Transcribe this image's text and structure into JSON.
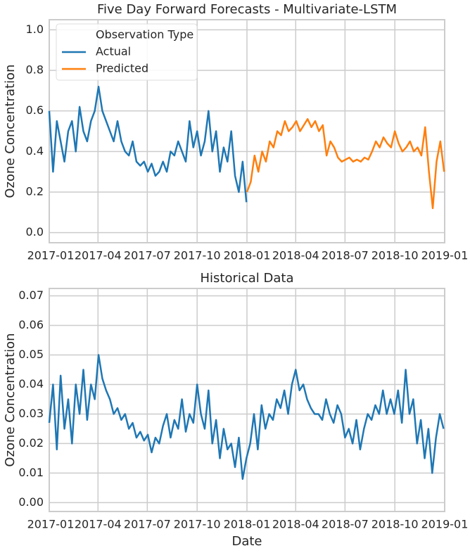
{
  "chart_data": [
    {
      "type": "line",
      "title": "Five Day Forward Forecasts - Multivariate-LSTM",
      "ylabel": "Ozone Concentration",
      "xlim": [
        0,
        730
      ],
      "xticks": [
        {
          "value": 0,
          "label": "2017-01"
        },
        {
          "value": 90,
          "label": "2017-04"
        },
        {
          "value": 181,
          "label": "2017-07"
        },
        {
          "value": 273,
          "label": "2017-10"
        },
        {
          "value": 365,
          "label": "2018-01"
        },
        {
          "value": 455,
          "label": "2018-04"
        },
        {
          "value": 546,
          "label": "2018-07"
        },
        {
          "value": 638,
          "label": "2018-10"
        },
        {
          "value": 730,
          "label": "2019-01"
        }
      ],
      "ylim": [
        -0.05,
        1.05
      ],
      "yticks": [
        {
          "value": 0,
          "label": "0.0"
        },
        0.2,
        0.4,
        0.6,
        0.8,
        {
          "value": 1,
          "label": "1.0"
        }
      ],
      "grid": true,
      "legend": {
        "title": "Observation Type",
        "loc": "upper left"
      },
      "series": [
        {
          "name": "Actual",
          "color": "#1f77b4",
          "x": [
            0,
            7,
            14,
            21,
            28,
            35,
            42,
            49,
            56,
            63,
            70,
            77,
            84,
            91,
            98,
            105,
            112,
            119,
            126,
            133,
            140,
            147,
            154,
            161,
            168,
            175,
            182,
            189,
            196,
            203,
            210,
            217,
            224,
            231,
            238,
            245,
            252,
            259,
            266,
            273,
            280,
            287,
            294,
            301,
            308,
            315,
            322,
            329,
            336,
            343,
            350,
            357,
            364
          ],
          "values": [
            0.6,
            0.3,
            0.55,
            0.45,
            0.35,
            0.5,
            0.55,
            0.4,
            0.62,
            0.5,
            0.45,
            0.55,
            0.6,
            0.72,
            0.6,
            0.55,
            0.5,
            0.45,
            0.55,
            0.45,
            0.4,
            0.38,
            0.45,
            0.35,
            0.33,
            0.35,
            0.3,
            0.34,
            0.28,
            0.3,
            0.35,
            0.3,
            0.4,
            0.38,
            0.45,
            0.4,
            0.35,
            0.55,
            0.42,
            0.5,
            0.38,
            0.45,
            0.6,
            0.4,
            0.5,
            0.3,
            0.42,
            0.35,
            0.5,
            0.28,
            0.2,
            0.35,
            0.15
          ]
        },
        {
          "name": "Predicted",
          "color": "#ff7f0e",
          "x": [
            365,
            372,
            379,
            386,
            393,
            400,
            407,
            414,
            421,
            428,
            435,
            442,
            449,
            456,
            463,
            470,
            477,
            484,
            491,
            498,
            505,
            512,
            519,
            526,
            533,
            540,
            547,
            554,
            561,
            568,
            575,
            582,
            589,
            596,
            603,
            610,
            617,
            624,
            631,
            638,
            645,
            652,
            659,
            666,
            673,
            680,
            687,
            694,
            701,
            708,
            715,
            722,
            729
          ],
          "values": [
            0.2,
            0.25,
            0.38,
            0.3,
            0.4,
            0.35,
            0.45,
            0.42,
            0.5,
            0.48,
            0.55,
            0.5,
            0.52,
            0.55,
            0.5,
            0.53,
            0.56,
            0.52,
            0.55,
            0.5,
            0.53,
            0.38,
            0.45,
            0.42,
            0.37,
            0.35,
            0.36,
            0.37,
            0.35,
            0.36,
            0.35,
            0.37,
            0.36,
            0.4,
            0.45,
            0.42,
            0.47,
            0.44,
            0.42,
            0.5,
            0.44,
            0.4,
            0.42,
            0.45,
            0.4,
            0.42,
            0.38,
            0.52,
            0.3,
            0.12,
            0.35,
            0.45,
            0.3
          ]
        }
      ]
    },
    {
      "type": "line",
      "title": "Historical Data",
      "ylabel": "Ozone Concentration",
      "xlabel": "Date",
      "xlim": [
        0,
        730
      ],
      "xticks": [
        {
          "value": 0,
          "label": "2017-01"
        },
        {
          "value": 90,
          "label": "2017-04"
        },
        {
          "value": 181,
          "label": "2017-07"
        },
        {
          "value": 273,
          "label": "2017-10"
        },
        {
          "value": 365,
          "label": "2018-01"
        },
        {
          "value": 455,
          "label": "2018-04"
        },
        {
          "value": 546,
          "label": "2018-07"
        },
        {
          "value": 638,
          "label": "2018-10"
        },
        {
          "value": 730,
          "label": "2019-01"
        }
      ],
      "ylim": [
        -0.003,
        0.0725
      ],
      "yticks": [
        {
          "value": 0,
          "label": "0.00"
        },
        0.01,
        0.02,
        0.03,
        0.04,
        0.05,
        0.06,
        0.07
      ],
      "grid": true,
      "series": [
        {
          "color": "#1f77b4",
          "x": [
            0,
            7,
            14,
            21,
            28,
            35,
            42,
            49,
            56,
            63,
            70,
            77,
            84,
            91,
            98,
            105,
            112,
            119,
            126,
            133,
            140,
            147,
            154,
            161,
            168,
            175,
            182,
            189,
            196,
            203,
            210,
            217,
            224,
            231,
            238,
            245,
            252,
            259,
            266,
            273,
            280,
            287,
            294,
            301,
            308,
            315,
            322,
            329,
            336,
            343,
            350,
            357,
            364,
            371,
            378,
            385,
            392,
            399,
            406,
            413,
            420,
            427,
            434,
            441,
            448,
            455,
            462,
            469,
            476,
            483,
            490,
            497,
            504,
            511,
            518,
            525,
            532,
            539,
            546,
            553,
            560,
            567,
            574,
            581,
            588,
            595,
            602,
            609,
            616,
            623,
            630,
            637,
            644,
            651,
            658,
            665,
            672,
            679,
            686,
            693,
            700,
            707,
            714,
            721,
            728
          ],
          "values": [
            0.027,
            0.04,
            0.018,
            0.043,
            0.025,
            0.035,
            0.02,
            0.04,
            0.03,
            0.045,
            0.028,
            0.04,
            0.035,
            0.05,
            0.042,
            0.038,
            0.035,
            0.03,
            0.032,
            0.028,
            0.03,
            0.025,
            0.027,
            0.022,
            0.024,
            0.021,
            0.023,
            0.017,
            0.022,
            0.02,
            0.026,
            0.03,
            0.022,
            0.028,
            0.025,
            0.035,
            0.024,
            0.03,
            0.027,
            0.04,
            0.03,
            0.025,
            0.038,
            0.02,
            0.028,
            0.015,
            0.025,
            0.018,
            0.02,
            0.012,
            0.022,
            0.008,
            0.015,
            0.02,
            0.03,
            0.018,
            0.033,
            0.025,
            0.03,
            0.028,
            0.035,
            0.032,
            0.038,
            0.03,
            0.04,
            0.045,
            0.038,
            0.04,
            0.035,
            0.032,
            0.03,
            0.03,
            0.028,
            0.035,
            0.03,
            0.027,
            0.033,
            0.03,
            0.022,
            0.025,
            0.02,
            0.028,
            0.018,
            0.025,
            0.03,
            0.028,
            0.033,
            0.03,
            0.038,
            0.03,
            0.035,
            0.03,
            0.038,
            0.027,
            0.045,
            0.03,
            0.035,
            0.02,
            0.028,
            0.015,
            0.025,
            0.01,
            0.022,
            0.03,
            0.025
          ]
        }
      ]
    }
  ]
}
